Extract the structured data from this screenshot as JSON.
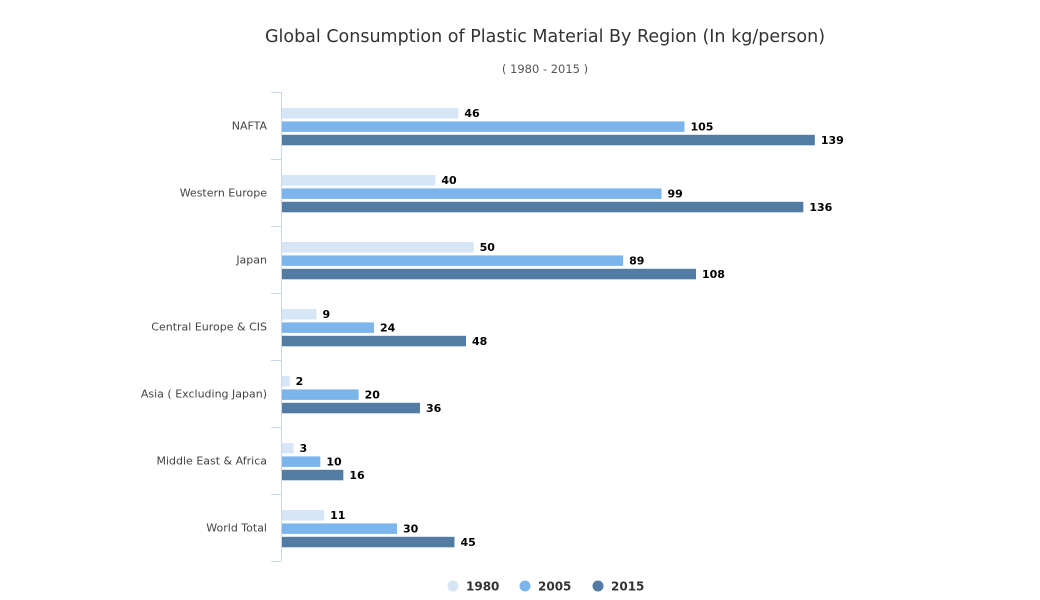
{
  "chart_data": {
    "type": "bar",
    "orientation": "horizontal",
    "title": "Global Consumption of Plastic Material By Region (In kg/person)",
    "subtitle": "( 1980 - 2015 )",
    "categories": [
      "NAFTA",
      "Western Europe",
      "Japan",
      "Central Europe & CIS",
      "Asia ( Excluding Japan)",
      "Middle East & Africa",
      "World Total"
    ],
    "series": [
      {
        "name": "1980",
        "color": "#d6e6f7",
        "values": [
          46,
          40,
          50,
          9,
          2,
          3,
          11
        ]
      },
      {
        "name": "2005",
        "color": "#7cb5ec",
        "values": [
          105,
          99,
          89,
          24,
          20,
          10,
          30
        ]
      },
      {
        "name": "2015",
        "color": "#527ca3",
        "values": [
          139,
          136,
          108,
          48,
          36,
          16,
          45
        ]
      }
    ],
    "xlim": [
      0,
      150
    ],
    "data_labels": true,
    "grid": false,
    "legend_position": "bottom"
  }
}
